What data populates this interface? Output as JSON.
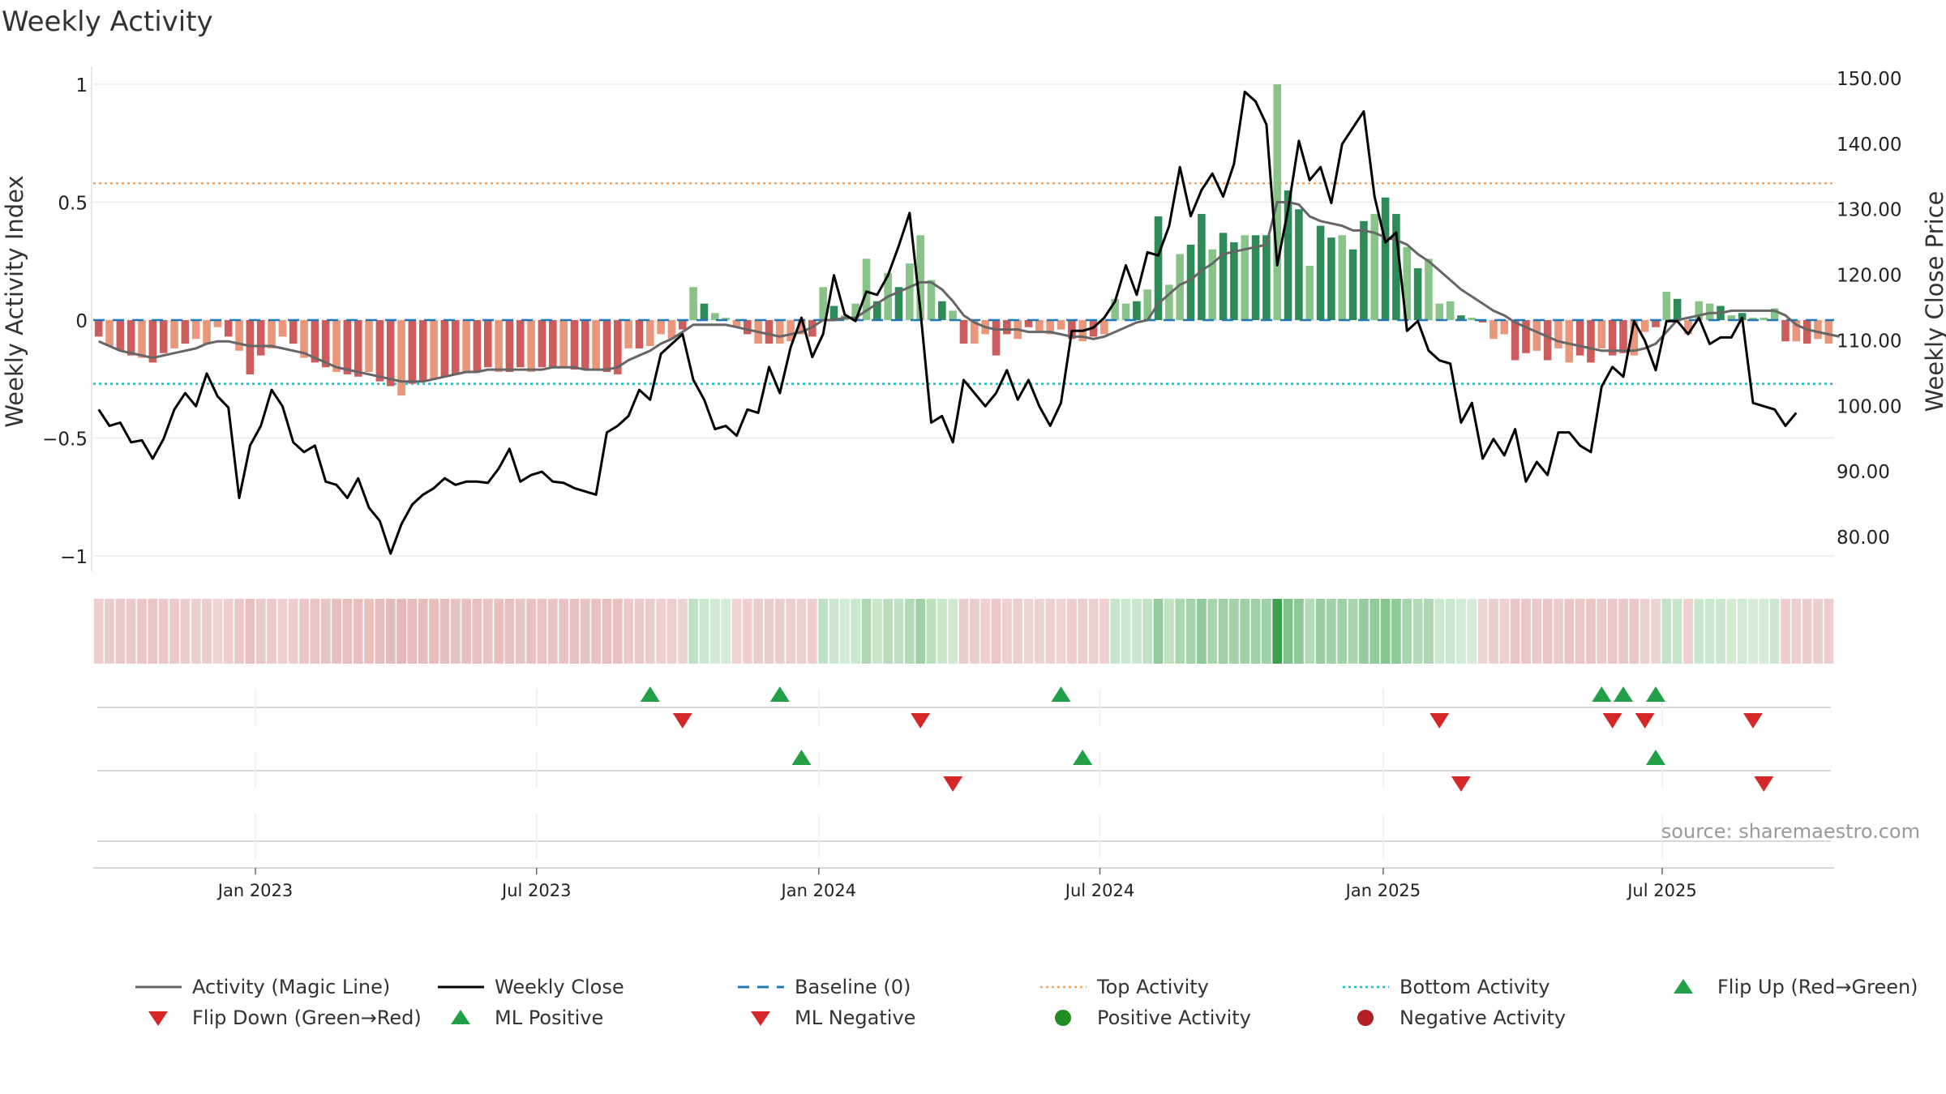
{
  "chart_data": {
    "type": "bar",
    "title": "Weekly Activity",
    "ylabel_left": "Weekly Activity Index",
    "ylabel_right": "Weekly Close Price",
    "ylim_left": [
      -1.1,
      1.05
    ],
    "ylim_right": [
      73,
      152
    ],
    "yticks_left": [
      1,
      0.5,
      0,
      -0.5,
      -1
    ],
    "ytick_labels_left": [
      "1",
      "0.5",
      "0",
      "−0.5",
      "−1"
    ],
    "yticks_right": [
      150,
      140,
      130,
      120,
      110,
      100,
      90,
      80
    ],
    "ytick_labels_right": [
      "150.00",
      "140.00",
      "130.00",
      "120.00",
      "110.00",
      "100.00",
      "90.00",
      "80.00"
    ],
    "x_date_ticks": [
      {
        "label": "Jan 2023",
        "week": 14.5
      },
      {
        "label": "Jul 2023",
        "week": 40.5
      },
      {
        "label": "Jan 2024",
        "week": 66.6
      },
      {
        "label": "Jul 2024",
        "week": 92.6
      },
      {
        "label": "Jan 2025",
        "week": 118.8
      },
      {
        "label": "Jul 2025",
        "week": 144.6
      }
    ],
    "top_activity": 0.58,
    "bottom_activity": -0.27,
    "baseline": 0,
    "activity_start": "2022-09",
    "activity_end": "2025-10",
    "activity_index": [
      -0.07,
      -0.11,
      -0.13,
      -0.15,
      -0.16,
      -0.18,
      -0.14,
      -0.12,
      -0.1,
      -0.08,
      -0.1,
      -0.03,
      -0.07,
      -0.13,
      -0.23,
      -0.15,
      -0.12,
      -0.07,
      -0.1,
      -0.16,
      -0.18,
      -0.2,
      -0.22,
      -0.23,
      -0.24,
      -0.22,
      -0.26,
      -0.28,
      -0.32,
      -0.27,
      -0.26,
      -0.25,
      -0.24,
      -0.23,
      -0.22,
      -0.22,
      -0.2,
      -0.22,
      -0.22,
      -0.2,
      -0.22,
      -0.2,
      -0.2,
      -0.2,
      -0.21,
      -0.21,
      -0.21,
      -0.22,
      -0.23,
      -0.12,
      -0.12,
      -0.11,
      -0.06,
      -0.08,
      -0.04,
      0.14,
      0.07,
      0.03,
      0.01,
      -0.03,
      -0.06,
      -0.1,
      -0.1,
      -0.1,
      -0.09,
      -0.06,
      -0.07,
      0.14,
      0.06,
      0.02,
      0.07,
      0.26,
      0.08,
      0.2,
      0.14,
      0.24,
      0.36,
      0.17,
      0.08,
      0.04,
      -0.1,
      -0.1,
      -0.06,
      -0.15,
      -0.06,
      -0.08,
      -0.03,
      -0.05,
      -0.06,
      -0.04,
      -0.08,
      -0.09,
      -0.07,
      -0.06,
      0.09,
      0.07,
      0.08,
      0.13,
      0.44,
      0.15,
      0.28,
      0.32,
      0.45,
      0.3,
      0.37,
      0.33,
      0.36,
      0.36,
      0.36,
      1.0,
      0.55,
      0.47,
      0.23,
      0.4,
      0.35,
      0.36,
      0.3,
      0.42,
      0.45,
      0.52,
      0.45,
      0.31,
      0.22,
      0.26,
      0.07,
      0.08,
      0.02,
      0.01,
      -0.01,
      -0.08,
      -0.06,
      -0.17,
      -0.14,
      -0.13,
      -0.17,
      -0.12,
      -0.18,
      -0.15,
      -0.18,
      -0.12,
      -0.15,
      -0.14,
      -0.15,
      -0.05,
      -0.03,
      0.12,
      0.09,
      -0.06,
      0.08,
      0.07,
      0.06,
      0.02,
      0.03,
      0.01,
      0.01,
      0.05,
      -0.09,
      -0.09,
      -0.1,
      -0.08,
      -0.1
    ],
    "magic_line": [
      -0.09,
      -0.11,
      -0.13,
      -0.14,
      -0.15,
      -0.16,
      -0.15,
      -0.14,
      -0.13,
      -0.12,
      -0.1,
      -0.09,
      -0.09,
      -0.1,
      -0.11,
      -0.11,
      -0.11,
      -0.12,
      -0.13,
      -0.14,
      -0.16,
      -0.18,
      -0.2,
      -0.21,
      -0.22,
      -0.23,
      -0.24,
      -0.25,
      -0.26,
      -0.26,
      -0.26,
      -0.25,
      -0.24,
      -0.23,
      -0.22,
      -0.22,
      -0.21,
      -0.21,
      -0.21,
      -0.21,
      -0.21,
      -0.21,
      -0.2,
      -0.2,
      -0.2,
      -0.21,
      -0.21,
      -0.21,
      -0.2,
      -0.17,
      -0.15,
      -0.13,
      -0.1,
      -0.08,
      -0.05,
      -0.02,
      -0.02,
      -0.02,
      -0.02,
      -0.03,
      -0.04,
      -0.05,
      -0.06,
      -0.07,
      -0.06,
      -0.05,
      -0.03,
      0.0,
      0.0,
      0.01,
      0.01,
      0.04,
      0.07,
      0.1,
      0.12,
      0.14,
      0.16,
      0.16,
      0.13,
      0.08,
      0.02,
      -0.01,
      -0.03,
      -0.04,
      -0.04,
      -0.04,
      -0.05,
      -0.05,
      -0.05,
      -0.06,
      -0.07,
      -0.07,
      -0.08,
      -0.07,
      -0.05,
      -0.03,
      -0.01,
      0.0,
      0.07,
      0.11,
      0.15,
      0.17,
      0.21,
      0.24,
      0.28,
      0.29,
      0.3,
      0.31,
      0.32,
      0.5,
      0.5,
      0.49,
      0.44,
      0.42,
      0.41,
      0.4,
      0.38,
      0.38,
      0.37,
      0.35,
      0.34,
      0.32,
      0.28,
      0.25,
      0.21,
      0.17,
      0.13,
      0.1,
      0.07,
      0.04,
      0.02,
      -0.01,
      -0.03,
      -0.05,
      -0.07,
      -0.09,
      -0.1,
      -0.11,
      -0.12,
      -0.13,
      -0.13,
      -0.13,
      -0.13,
      -0.12,
      -0.1,
      -0.05,
      0.0,
      0.01,
      0.02,
      0.03,
      0.03,
      0.04,
      0.04,
      0.04,
      0.04,
      0.04,
      0.02,
      -0.02,
      -0.04,
      -0.05,
      -0.06,
      -0.07
    ],
    "weekly_close": [
      99.5,
      97.0,
      97.5,
      94.5,
      94.8,
      92.0,
      95.0,
      99.5,
      102.0,
      100.0,
      105.0,
      101.5,
      99.8,
      86.0,
      94.0,
      97.0,
      102.5,
      100.0,
      94.5,
      93.0,
      94.0,
      88.5,
      88.0,
      86.0,
      89.0,
      84.5,
      82.5,
      77.5,
      82.0,
      85.0,
      86.5,
      87.5,
      89.0,
      88.0,
      88.5,
      88.5,
      88.3,
      90.5,
      93.5,
      88.5,
      89.5,
      90.0,
      88.5,
      88.3,
      87.5,
      87.0,
      86.5,
      96.0,
      97.0,
      98.5,
      102.5,
      101.0,
      108.0,
      109.5,
      111.0,
      104.0,
      101.0,
      96.5,
      97.0,
      95.5,
      99.5,
      99.0,
      106.0,
      102.0,
      109.0,
      113.5,
      107.5,
      111.0,
      120.0,
      114.0,
      113.0,
      117.5,
      117.0,
      120.0,
      124.5,
      129.5,
      114.5,
      97.5,
      98.5,
      94.5,
      104.0,
      102.0,
      100.0,
      102.0,
      105.5,
      101.0,
      104.0,
      100.0,
      97.0,
      100.5,
      111.5,
      111.5,
      112.0,
      113.5,
      116.0,
      121.5,
      117.0,
      123.5,
      123.0,
      127.5,
      136.5,
      129.0,
      133.0,
      135.5,
      132.0,
      137.0,
      148.0,
      146.5,
      143.0,
      121.5,
      130.0,
      140.5,
      134.5,
      136.5,
      131.0,
      140.0,
      142.5,
      145.0,
      132.0,
      125.0,
      126.5,
      111.5,
      113.0,
      108.5,
      107.0,
      106.5,
      97.5,
      100.5,
      92.0,
      95.0,
      92.5,
      96.5,
      88.5,
      91.5,
      89.5,
      96.0,
      96.0,
      94.0,
      93.0,
      103.0,
      106.0,
      104.5,
      113.0,
      110.0,
      105.5,
      113.0,
      113.0,
      111.0,
      113.5,
      109.5,
      110.5,
      110.5,
      113.5,
      100.5,
      100.0,
      99.5,
      97.0,
      99.0
    ],
    "heat_strip_note": "colored by activity index (red = negative, green = positive)",
    "flip_up_weeks": [
      51,
      63,
      89,
      139,
      141,
      144
    ],
    "flip_down_weeks": [
      54,
      76,
      124,
      140,
      143,
      153
    ],
    "ml_positive_weeks": [
      65,
      91,
      144
    ],
    "ml_negative_weeks": [
      79,
      126,
      154
    ],
    "colors": {
      "positive_strong": "#2e8b57",
      "positive_light": "#88c487",
      "negative_strong": "#cd5c5c",
      "negative_light": "#e9967a",
      "magic_line": "#666666",
      "close_line": "#000000",
      "baseline": "#1f77b4",
      "top_activity": "#f4a460",
      "bottom_activity": "#17becf",
      "marker_up": "#22a048",
      "marker_down": "#d62728",
      "positive_dot": "#228b22",
      "negative_dot": "#b22222"
    },
    "legend": {
      "placement": "bottom",
      "items": [
        {
          "label": "Activity (Magic Line)",
          "type": "line"
        },
        {
          "label": "Weekly Close",
          "type": "line"
        },
        {
          "label": "Baseline (0)",
          "type": "dash"
        },
        {
          "label": "Top Activity",
          "type": "dot-line"
        },
        {
          "label": "Bottom Activity",
          "type": "dot-line"
        },
        {
          "label": "Flip Up (Red→Green)",
          "type": "tri-up"
        },
        {
          "label": "Flip Down (Green→Red)",
          "type": "tri-down"
        },
        {
          "label": "ML Positive",
          "type": "tri-up"
        },
        {
          "label": "ML Negative",
          "type": "tri-down"
        },
        {
          "label": "Positive Activity",
          "type": "circle"
        },
        {
          "label": "Negative Activity",
          "type": "circle"
        }
      ]
    },
    "source": "source: sharemaestro.com"
  }
}
